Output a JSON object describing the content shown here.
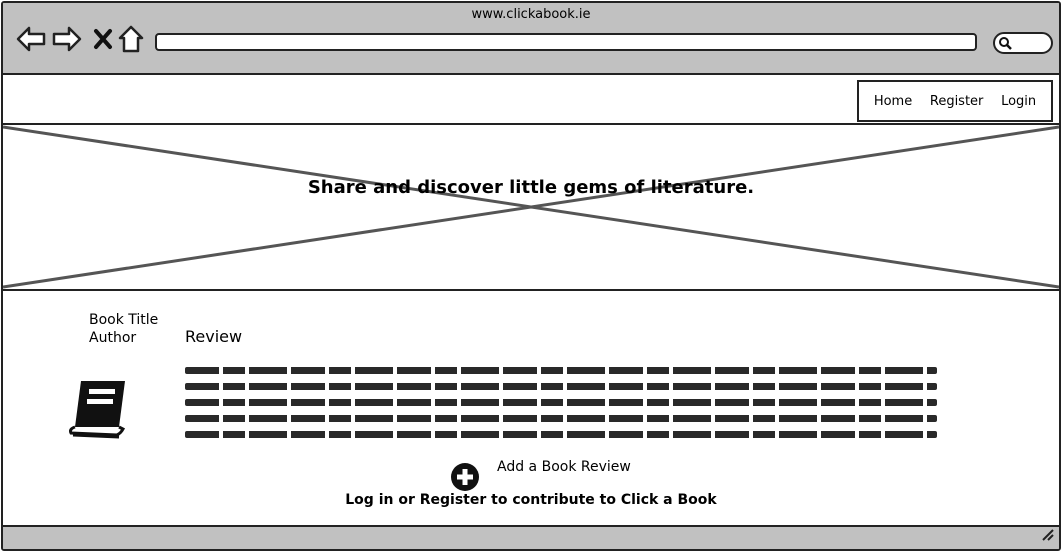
{
  "browser": {
    "title": "www.clickabook.ie",
    "icons": [
      "back-arrow-icon",
      "forward-arrow-icon",
      "close-icon",
      "home-icon",
      "search-icon"
    ]
  },
  "nav": {
    "items": [
      {
        "label": "Home"
      },
      {
        "label": "Register"
      },
      {
        "label": "Login"
      }
    ]
  },
  "hero": {
    "tagline": "Share and discover little gems of literature."
  },
  "book": {
    "title": "Book Title",
    "author": "Author",
    "review_heading": "Review",
    "icon": "book-icon"
  },
  "actions": {
    "add_review_label": "Add a Book Review",
    "add_icon": "plus-circle-icon",
    "contribute_text": "Log in or Register to contribute to Click a Book"
  },
  "colors": {
    "chrome": "#c1c1c1",
    "stroke": "#222222"
  }
}
